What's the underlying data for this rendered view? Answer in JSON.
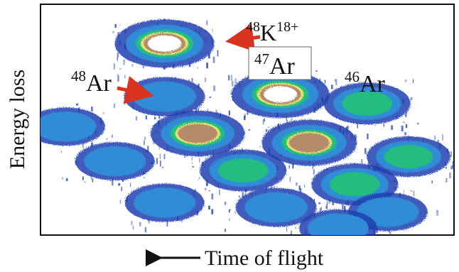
{
  "chart_data": {
    "type": "heatmap",
    "title": "",
    "xlabel": "Time of flight",
    "ylabel": "Energy loss",
    "x_direction_arrow": "left",
    "colormap": [
      "#1f3fb0",
      "#2f8fd8",
      "#22c07a",
      "#e8e070",
      "#b38a6a",
      "#ffffff"
    ],
    "annotations": [
      {
        "id": "k48",
        "mass": "48",
        "element": "K",
        "charge": "18+",
        "arrow": true,
        "boxed": false
      },
      {
        "id": "ar47",
        "mass": "47",
        "element": "Ar",
        "charge": "",
        "arrow": false,
        "boxed": true
      },
      {
        "id": "ar46",
        "mass": "46",
        "element": "Ar",
        "charge": "",
        "arrow": false,
        "boxed": false
      },
      {
        "id": "ar48",
        "mass": "48",
        "element": "Ar",
        "charge": "",
        "arrow": true,
        "boxed": false
      }
    ],
    "blobs": [
      {
        "id": "k48-18plus",
        "tof": 0.3,
        "de": 0.83,
        "intensity": 1.0
      },
      {
        "id": "ar48",
        "tof": 0.3,
        "de": 0.6,
        "intensity": 0.35
      },
      {
        "id": "ar47",
        "tof": 0.58,
        "de": 0.61,
        "intensity": 0.95
      },
      {
        "id": "ar46",
        "tof": 0.79,
        "de": 0.57,
        "intensity": 0.55
      },
      {
        "id": "b5",
        "tof": 0.06,
        "de": 0.47,
        "intensity": 0.3
      },
      {
        "id": "b6",
        "tof": 0.38,
        "de": 0.44,
        "intensity": 0.82
      },
      {
        "id": "b7",
        "tof": 0.65,
        "de": 0.4,
        "intensity": 0.85
      },
      {
        "id": "b8",
        "tof": 0.89,
        "de": 0.34,
        "intensity": 0.45
      },
      {
        "id": "b9",
        "tof": 0.18,
        "de": 0.32,
        "intensity": 0.3
      },
      {
        "id": "b10",
        "tof": 0.49,
        "de": 0.28,
        "intensity": 0.55
      },
      {
        "id": "b11",
        "tof": 0.76,
        "de": 0.22,
        "intensity": 0.55
      },
      {
        "id": "b12",
        "tof": 0.3,
        "de": 0.14,
        "intensity": 0.3
      },
      {
        "id": "b13",
        "tof": 0.57,
        "de": 0.12,
        "intensity": 0.35
      },
      {
        "id": "b14",
        "tof": 0.84,
        "de": 0.1,
        "intensity": 0.3
      },
      {
        "id": "b15",
        "tof": 0.72,
        "de": 0.03,
        "intensity": 0.25
      }
    ]
  }
}
